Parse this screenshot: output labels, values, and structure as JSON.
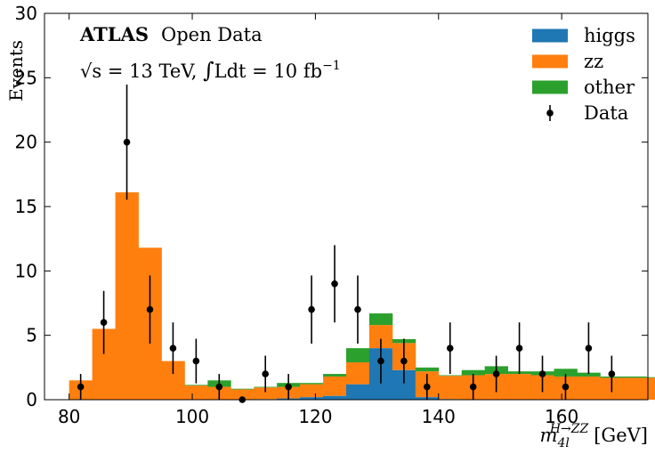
{
  "chart_data": {
    "type": "bar",
    "subtype": "stacked-histogram-with-data-points",
    "title": "",
    "annotations": {
      "experiment": "ATLAS",
      "subtitle": "Open Data",
      "energy_prefix": "√s = 13 TeV, ",
      "integral": "∫",
      "lumi_text": "Ldt =  10 fb",
      "lumi_exp": "−1"
    },
    "xlabel_main": "m",
    "xlabel_sub": "4l",
    "xlabel_sup": "H→ZZ",
    "xlabel_unit": "[GeV]",
    "ylabel": "Events",
    "xlim": [
      76,
      174
    ],
    "ylim": [
      0,
      30
    ],
    "x_ticks": [
      80,
      100,
      120,
      140,
      160
    ],
    "y_ticks": [
      0,
      5,
      10,
      15,
      20,
      25,
      30
    ],
    "bin_width": 3.75,
    "bin_edges_start": 80,
    "legend_position": "top-right",
    "series": [
      {
        "name": "higgs",
        "color": "#1f77b4",
        "values": [
          0,
          0,
          0,
          0,
          0,
          0,
          0,
          0,
          0.05,
          0.1,
          0.2,
          0.3,
          1.2,
          4.0,
          2.3,
          0.2,
          0.05,
          0,
          0,
          0,
          0,
          0,
          0,
          0,
          0,
          0,
          0,
          0
        ]
      },
      {
        "name": "zz",
        "color": "#ff7f0e",
        "values": [
          1.5,
          5.5,
          16.1,
          11.8,
          3.0,
          1.1,
          1.0,
          0.8,
          0.9,
          0.9,
          1.0,
          1.5,
          1.7,
          1.8,
          2.1,
          2.0,
          1.8,
          1.9,
          2.0,
          2.0,
          1.9,
          1.8,
          1.8,
          1.7,
          1.7,
          1.7,
          1.7,
          1.9
        ]
      },
      {
        "name": "other",
        "color": "#2ca02c",
        "values": [
          0,
          0,
          0,
          0,
          0,
          0.05,
          0.5,
          0.05,
          0.05,
          0.3,
          0.1,
          0.2,
          1.1,
          0.9,
          0.3,
          0.3,
          0.05,
          0.4,
          0.6,
          0.2,
          0.3,
          0.6,
          0.3,
          0.1,
          0.1,
          0.05,
          0.05,
          0.05
        ]
      }
    ],
    "data_points": {
      "name": "Data",
      "color": "#000000",
      "x": [
        81.875,
        85.625,
        89.375,
        93.125,
        96.875,
        100.625,
        104.375,
        108.125,
        111.875,
        115.625,
        119.375,
        123.125,
        126.875,
        130.625,
        134.375,
        138.125,
        141.875,
        145.625,
        149.375,
        153.125,
        156.875,
        160.625,
        164.375,
        168.125
      ],
      "y": [
        1,
        6,
        20,
        7,
        4,
        3,
        1,
        0,
        2,
        1,
        7,
        9,
        7,
        3,
        3,
        1,
        4,
        1,
        2,
        4,
        2,
        1,
        4,
        2
      ]
    }
  }
}
